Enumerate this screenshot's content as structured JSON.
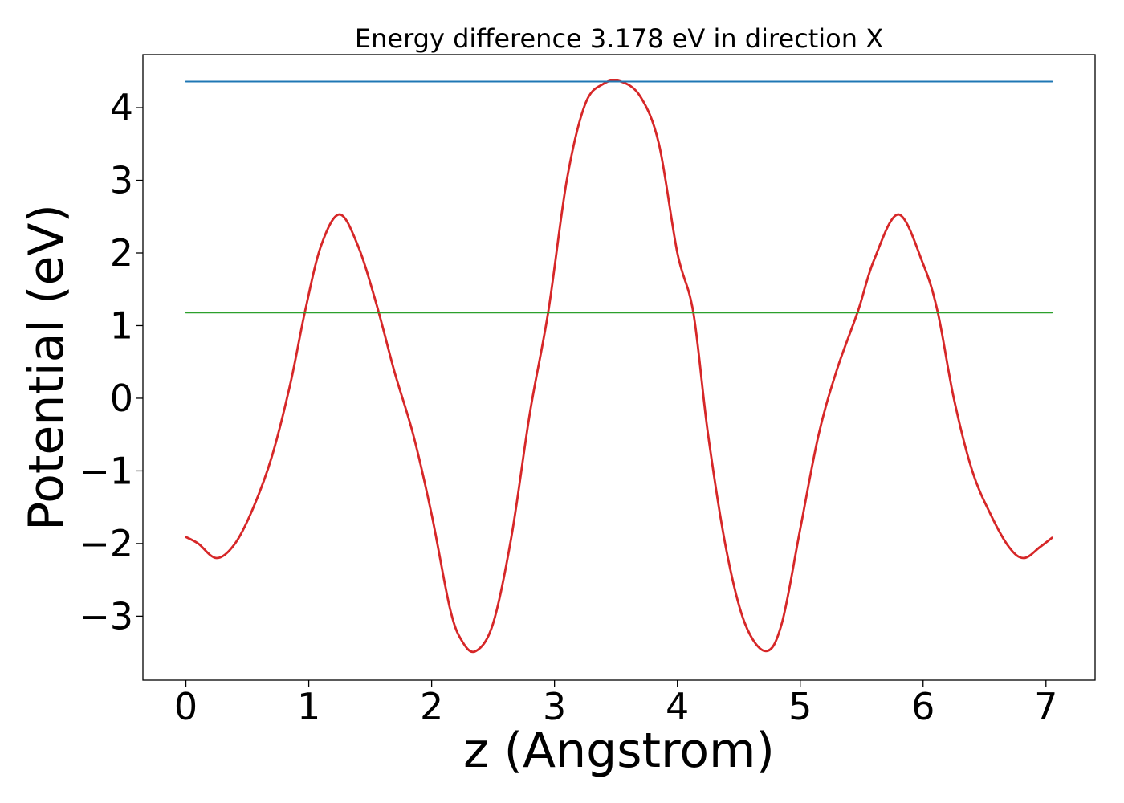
{
  "chart_data": {
    "type": "line",
    "title": "Energy difference 3.178 eV in direction X",
    "xlabel": "z (Angstrom)",
    "ylabel": "Potential (eV)",
    "xlim": [
      -0.35,
      7.4
    ],
    "ylim": [
      -3.88,
      4.73
    ],
    "xticks": [
      0,
      1,
      2,
      3,
      4,
      5,
      6,
      7
    ],
    "yticks": [
      -3,
      -2,
      -1,
      0,
      1,
      2,
      3,
      4
    ],
    "xtick_labels": [
      "0",
      "1",
      "2",
      "3",
      "4",
      "5",
      "6",
      "7"
    ],
    "ytick_labels": [
      "−3",
      "−2",
      "−1",
      "0",
      "1",
      "2",
      "3",
      "4"
    ],
    "grid": false,
    "legend": "none",
    "series": [
      {
        "color": "#d62728",
        "x": [
          0.0,
          0.1,
          0.25,
          0.4,
          0.55,
          0.7,
          0.85,
          0.97,
          1.1,
          1.25,
          1.4,
          1.55,
          1.7,
          1.85,
          2.0,
          2.15,
          2.25,
          2.36,
          2.5,
          2.65,
          2.8,
          2.95,
          3.1,
          3.25,
          3.4,
          3.54,
          3.7,
          3.85,
          4.0,
          4.13,
          4.25,
          4.4,
          4.55,
          4.72,
          4.85,
          5.0,
          5.15,
          5.3,
          5.47,
          5.6,
          5.8,
          6.0,
          6.12,
          6.25,
          6.4,
          6.55,
          6.7,
          6.82,
          6.95,
          7.05
        ],
        "y": [
          -1.91,
          -2.0,
          -2.2,
          -2.0,
          -1.5,
          -0.8,
          0.2,
          1.2,
          2.1,
          2.53,
          2.1,
          1.3,
          0.35,
          -0.5,
          -1.6,
          -2.9,
          -3.35,
          -3.48,
          -3.1,
          -1.9,
          -0.2,
          1.2,
          3.0,
          4.05,
          4.33,
          4.36,
          4.15,
          3.5,
          2.0,
          1.18,
          -0.5,
          -2.1,
          -3.1,
          -3.48,
          -3.1,
          -1.8,
          -0.5,
          0.4,
          1.2,
          1.9,
          2.53,
          1.85,
          1.18,
          0.0,
          -1.0,
          -1.6,
          -2.05,
          -2.2,
          -2.05,
          -1.92
        ]
      },
      {
        "color": "#1f77b4",
        "x": [
          0.0,
          7.05
        ],
        "y": [
          4.36,
          4.36
        ]
      },
      {
        "color": "#2ca02c",
        "x": [
          0.0,
          7.05
        ],
        "y": [
          1.18,
          1.18
        ]
      }
    ]
  }
}
